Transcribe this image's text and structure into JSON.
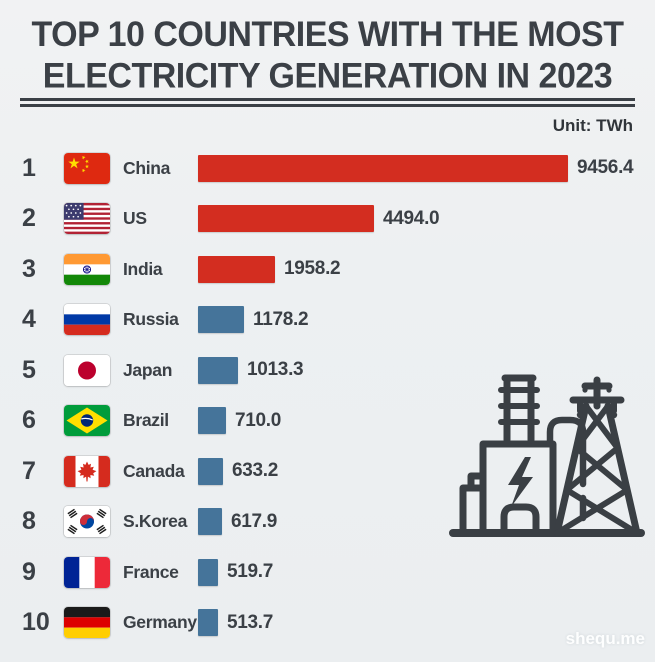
{
  "header": {
    "title_line1": "TOP 10 COUNTRIES WITH THE MOST",
    "title_line2": "ELECTRICITY GENERATION IN 2023",
    "unit_label": "Unit: TWh"
  },
  "chart_data": {
    "type": "bar",
    "orientation": "horizontal",
    "title": "TOP 10 COUNTRIES WITH THE MOST ELECTRICITY GENERATION IN 2023",
    "unit": "TWh",
    "xlim": [
      0,
      9456.4
    ],
    "grid": false,
    "legend": "none",
    "categories": [
      "China",
      "US",
      "India",
      "Russia",
      "Japan",
      "Brazil",
      "Canada",
      "S.Korea",
      "France",
      "Germany"
    ],
    "values": [
      9456.4,
      4494.0,
      1958.2,
      1178.2,
      1013.3,
      710.0,
      633.2,
      617.9,
      519.7,
      513.7
    ],
    "colors": {
      "top3_bar": "#d32d20",
      "other_bar": "#45749a",
      "label_text": "#3b4046"
    },
    "rows": [
      {
        "rank": "1",
        "country": "China",
        "flag": "china",
        "value": 9456.4,
        "value_label": "9456.4",
        "color": "#d32d20"
      },
      {
        "rank": "2",
        "country": "US",
        "flag": "us",
        "value": 4494.0,
        "value_label": "4494.0",
        "color": "#d32d20"
      },
      {
        "rank": "3",
        "country": "India",
        "flag": "india",
        "value": 1958.2,
        "value_label": "1958.2",
        "color": "#d32d20"
      },
      {
        "rank": "4",
        "country": "Russia",
        "flag": "russia",
        "value": 1178.2,
        "value_label": "1178.2",
        "color": "#45749a"
      },
      {
        "rank": "5",
        "country": "Japan",
        "flag": "japan",
        "value": 1013.3,
        "value_label": "1013.3",
        "color": "#45749a"
      },
      {
        "rank": "6",
        "country": "Brazil",
        "flag": "brazil",
        "value": 710.0,
        "value_label": "710.0",
        "color": "#45749a"
      },
      {
        "rank": "7",
        "country": "Canada",
        "flag": "canada",
        "value": 633.2,
        "value_label": "633.2",
        "color": "#45749a"
      },
      {
        "rank": "8",
        "country": "S.Korea",
        "flag": "skorea",
        "value": 617.9,
        "value_label": "617.9",
        "color": "#45749a"
      },
      {
        "rank": "9",
        "country": "France",
        "flag": "france",
        "value": 519.7,
        "value_label": "519.7",
        "color": "#45749a"
      },
      {
        "rank": "10",
        "country": "Germany",
        "flag": "germany",
        "value": 513.7,
        "value_label": "513.7",
        "color": "#45749a"
      }
    ]
  },
  "decor": {
    "power_plant_icon": "power-plant-and-transmission-tower",
    "icon_color": "#3a3f44"
  },
  "footer": {
    "watermark": "shequ.me"
  }
}
